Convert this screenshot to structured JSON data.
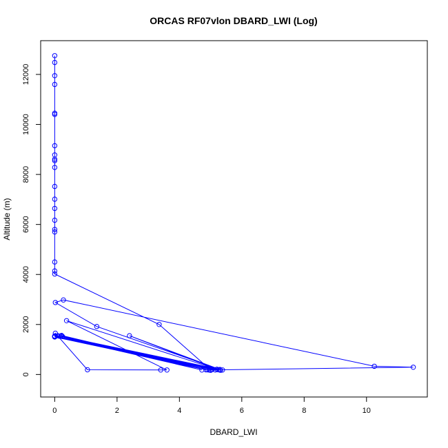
{
  "chart_data": {
    "type": "scatter",
    "mode": "lines+markers",
    "title": "ORCAS RF07vlon DBARD_LWI (Log)",
    "xlabel": "DBARD_LWI",
    "ylabel": "Altitude (m)",
    "xlim": [
      -0.45,
      11.95
    ],
    "ylim": [
      -900,
      13350
    ],
    "xticks": [
      0,
      2,
      4,
      6,
      8,
      10
    ],
    "yticks": [
      0,
      2000,
      4000,
      6000,
      8000,
      10000,
      12000
    ],
    "grid": false,
    "legend": "none",
    "color": "#0000ff",
    "series": [
      {
        "points": [
          [
            0,
            12750
          ],
          [
            0,
            12480
          ],
          [
            0,
            11950
          ],
          [
            0,
            11600
          ],
          [
            0,
            10450
          ],
          [
            0,
            10400
          ],
          [
            0,
            9150
          ],
          [
            0,
            8780
          ],
          [
            0,
            8610
          ],
          [
            0,
            8550
          ],
          [
            0,
            8280
          ],
          [
            0,
            7520
          ],
          [
            0,
            7010
          ],
          [
            0,
            6640
          ],
          [
            0,
            6170
          ],
          [
            0,
            5800
          ],
          [
            0,
            5700
          ],
          [
            0,
            4500
          ],
          [
            0,
            4140
          ],
          [
            0,
            4020
          ],
          [
            3.35,
            2000
          ],
          [
            5.0,
            180
          ],
          [
            11.5,
            290
          ],
          [
            10.25,
            330
          ],
          [
            0.28,
            2980
          ],
          [
            0.02,
            2880
          ],
          [
            1.35,
            1920
          ],
          [
            5.3,
            200
          ],
          [
            2.4,
            1550
          ],
          [
            5.2,
            210
          ],
          [
            0.38,
            2150
          ],
          [
            3.6,
            180
          ],
          [
            3.4,
            180
          ],
          [
            1.05,
            190
          ],
          [
            0.02,
            1650
          ],
          [
            0,
            1540
          ],
          [
            4.72,
            180
          ],
          [
            0.22,
            1560
          ],
          [
            4.85,
            190
          ],
          [
            0,
            1520
          ],
          [
            4.95,
            180
          ],
          [
            0.15,
            1530
          ],
          [
            5.05,
            200
          ],
          [
            0,
            1510
          ],
          [
            5.15,
            180
          ],
          [
            0.2,
            1540
          ],
          [
            5.25,
            190
          ],
          [
            0,
            1530
          ],
          [
            5.32,
            170
          ],
          [
            0.25,
            1520
          ],
          [
            5.38,
            180
          ],
          [
            0,
            1500
          ],
          [
            4.9,
            190
          ],
          [
            0.1,
            1550
          ],
          [
            5.0,
            170
          ]
        ]
      }
    ]
  }
}
